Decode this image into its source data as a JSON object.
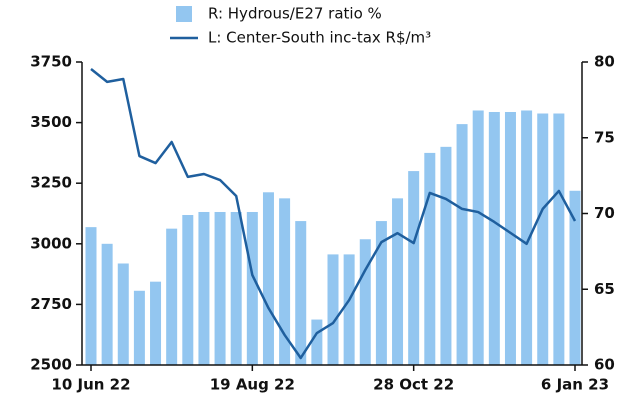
{
  "chart_data": {
    "type": "combo",
    "categories": [
      "10 Jun 22",
      null,
      null,
      null,
      null,
      null,
      null,
      null,
      null,
      null,
      "19 Aug 22",
      null,
      null,
      null,
      null,
      null,
      null,
      null,
      null,
      null,
      "28 Oct 22",
      null,
      null,
      null,
      null,
      null,
      null,
      null,
      null,
      null,
      "6 Jan 23"
    ],
    "series": [
      {
        "name": "R: Hydrous/E27 ratio %",
        "type": "bar",
        "axis": "y2",
        "color": "#93c6f0",
        "values": [
          69.1,
          68.0,
          66.7,
          64.9,
          65.5,
          69.0,
          69.9,
          70.1,
          70.1,
          70.1,
          70.1,
          71.4,
          71.0,
          69.5,
          63.0,
          67.3,
          67.3,
          68.3,
          69.5,
          71.0,
          72.8,
          74.0,
          74.4,
          75.9,
          76.8,
          76.7,
          76.7,
          76.8,
          76.6,
          76.6,
          71.5
        ]
      },
      {
        "name": "L: Center-South inc-tax R$/m³",
        "type": "line",
        "axis": "y",
        "color": "#1f5f9e",
        "values": [
          3721,
          3668,
          3680,
          3362,
          3333,
          3420,
          3276,
          3288,
          3263,
          3197,
          2871,
          2735,
          2624,
          2529,
          2632,
          2673,
          2768,
          2892,
          3007,
          3044,
          3003,
          3210,
          3185,
          3144,
          3131,
          3090,
          3045,
          3000,
          3144,
          3218,
          3094
        ]
      }
    ],
    "ylim": [
      2500,
      3750
    ],
    "yticks": [
      2500,
      2750,
      3000,
      3250,
      3500,
      3750
    ],
    "y2lim": [
      60,
      80
    ],
    "y2ticks": [
      60,
      65,
      70,
      75,
      80
    ],
    "legend": "top"
  }
}
